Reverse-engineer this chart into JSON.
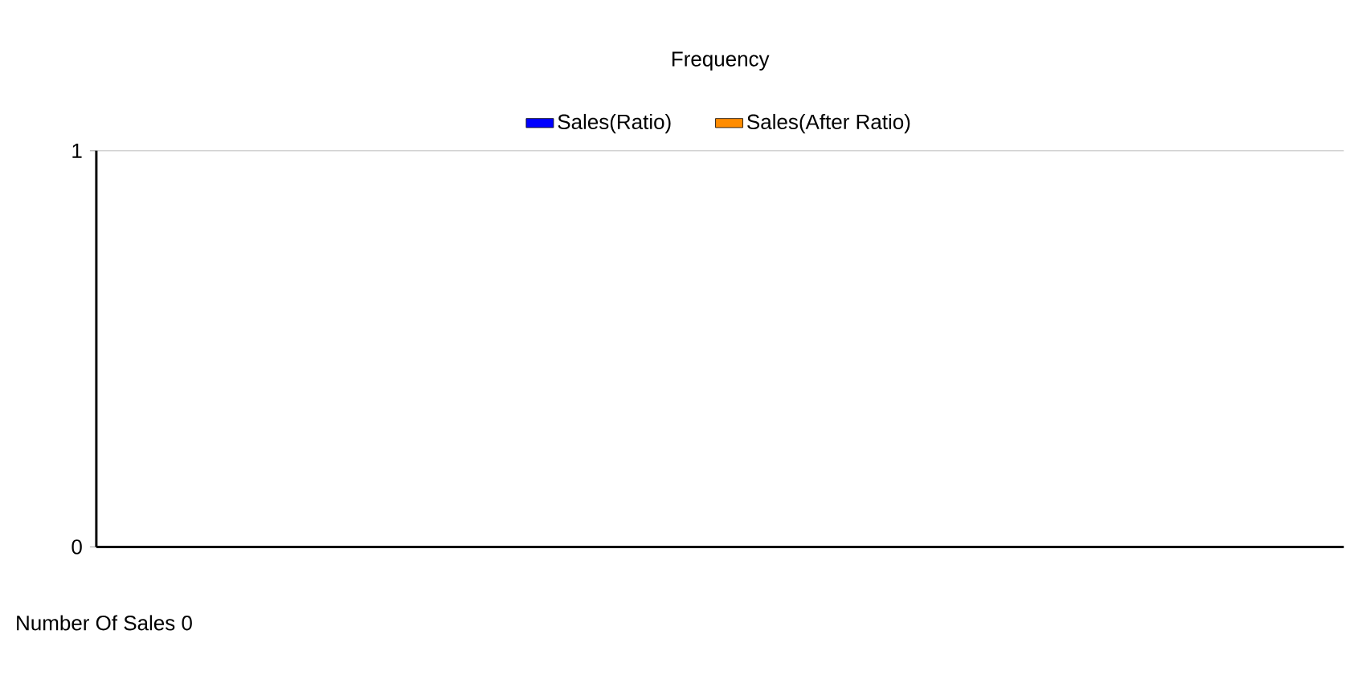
{
  "chart_data": {
    "type": "bar",
    "title": "Frequency",
    "xlabel": "Number Of Sales 0",
    "categories": [
      null
    ],
    "series": [
      {
        "name": "Sales(Ratio)",
        "color": "#0000ff",
        "values": [
          null
        ]
      },
      {
        "name": "Sales(After Ratio)",
        "color": "#ff8c00",
        "values": [
          null
        ]
      }
    ],
    "ylim": [
      0,
      1
    ],
    "yticks": [
      0,
      1
    ],
    "grid": "y",
    "legend": "top"
  }
}
